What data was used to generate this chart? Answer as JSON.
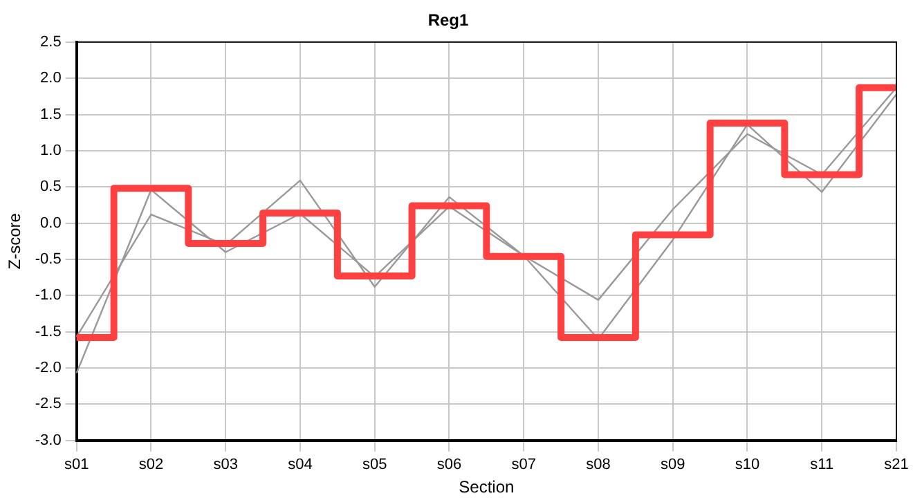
{
  "chart_data": {
    "type": "line",
    "title": "Reg1",
    "xlabel": "Section",
    "ylabel": "Z-score",
    "categories": [
      "s01",
      "s02",
      "s03",
      "s04",
      "s05",
      "s06",
      "s07",
      "s08",
      "s09",
      "s10",
      "s11",
      "s21"
    ],
    "series": [
      {
        "color": "#999999",
        "values": [
          -1.57,
          0.12,
          -0.3,
          0.59,
          -0.88,
          0.36,
          -0.45,
          -1.06,
          0.19,
          1.23,
          0.67,
          1.87
        ]
      },
      {
        "color": "#999999",
        "values": [
          -2.07,
          0.46,
          -0.4,
          0.13,
          -0.74,
          0.23,
          -0.45,
          -1.6,
          -0.23,
          1.36,
          0.43,
          1.78
        ]
      },
      {
        "type": "step",
        "color": "#ff4040",
        "values": [
          -1.58,
          0.48,
          -0.28,
          0.14,
          -0.73,
          0.24,
          -0.46,
          -1.58,
          -0.16,
          1.38,
          0.67,
          1.87
        ]
      }
    ],
    "ylim": [
      -3.0,
      2.5
    ],
    "yticks": [
      {
        "value": -3,
        "label": "-3.0"
      },
      -2.5,
      {
        "value": -2,
        "label": "-2.0"
      },
      -1.5,
      {
        "value": -1,
        "label": "-1.0"
      },
      -0.5,
      {
        "value": 0,
        "label": "0.0"
      },
      0.5,
      {
        "value": 1,
        "label": "1.0"
      },
      1.5,
      {
        "value": 2,
        "label": "2.0"
      },
      2.5
    ],
    "grid": true,
    "legend": false,
    "marker": "none"
  }
}
